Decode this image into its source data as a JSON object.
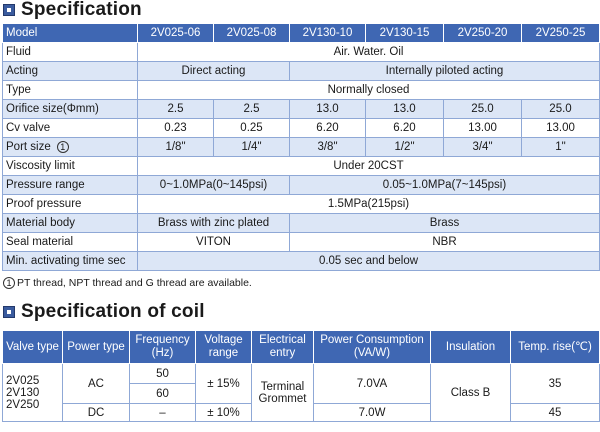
{
  "spec_section": {
    "title": "Specification"
  },
  "spec_table": {
    "header": {
      "label": "Model",
      "models": [
        "2V025-06",
        "2V025-08",
        "2V130-10",
        "2V130-15",
        "2V250-20",
        "2V250-25"
      ]
    },
    "fluid": {
      "label": "Fluid",
      "value": "Air. Water. Oil"
    },
    "acting": {
      "label": "Acting",
      "direct": "Direct acting",
      "piloted": "Internally piloted acting"
    },
    "type": {
      "label": "Type",
      "value": "Normally closed"
    },
    "orifice": {
      "label": "Orifice size(Φmm)",
      "values": [
        "2.5",
        "2.5",
        "13.0",
        "13.0",
        "25.0",
        "25.0"
      ]
    },
    "cv": {
      "label": "Cv valve",
      "values": [
        "0.23",
        "0.25",
        "6.20",
        "6.20",
        "13.00",
        "13.00"
      ]
    },
    "port": {
      "label": "Port  size",
      "marker": "1",
      "values": [
        "1/8\"",
        "1/4\"",
        "3/8\"",
        "1/2\"",
        "3/4\"",
        "1\""
      ]
    },
    "viscosity": {
      "label": "Viscosity limit",
      "value": "Under 20CST"
    },
    "pressure_range": {
      "label": "Pressure range",
      "direct": "0~1.0MPa(0~145psi)",
      "piloted": "0.05~1.0MPa(7~145psi)"
    },
    "proof": {
      "label": "Proof pressure",
      "value": "1.5MPa(215psi)"
    },
    "material_body": {
      "label": "Material body",
      "direct": "Brass with zinc plated",
      "piloted": "Brass"
    },
    "seal": {
      "label": "Seal material",
      "direct": "VITON",
      "piloted": "NBR"
    },
    "activating": {
      "label": "Min. activating time sec",
      "value": "0.05 sec and below"
    }
  },
  "note": {
    "marker": "1",
    "text": "PT thread, NPT thread and G thread are available."
  },
  "coil_section": {
    "title": "Specification of coil"
  },
  "coil_table": {
    "headers": {
      "valve_type": "Valve type",
      "power_type": "Power type",
      "frequency": "Frequency",
      "frequency_unit": "(Hz)",
      "voltage": "Voltage",
      "voltage_unit": "range",
      "electrical": "Electrical",
      "electrical_unit": "entry",
      "power": "Power Consumption",
      "power_unit": "(VA/W)",
      "insulation": "Insulation",
      "temp": "Temp. rise(℃)"
    },
    "valve_types": [
      "2V025",
      "2V130",
      "2V250"
    ],
    "ac": {
      "power_type": "AC",
      "freq_50": "50",
      "freq_60": "60",
      "voltage": "± 15%",
      "power": "7.0VA",
      "temp": "35"
    },
    "dc": {
      "power_type": "DC",
      "freq": "–",
      "voltage": "± 10%",
      "power": "7.0W",
      "temp": "45"
    },
    "electrical_entry": [
      "Terminal",
      "Grommet"
    ],
    "insulation": "Class B"
  }
}
